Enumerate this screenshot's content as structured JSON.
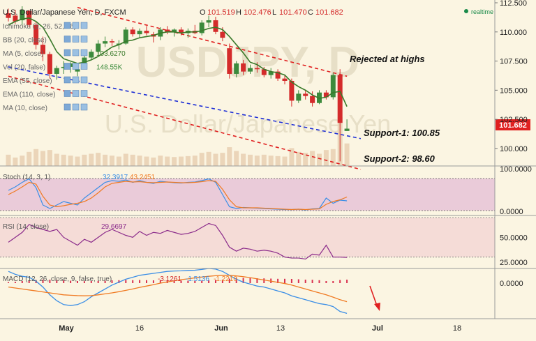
{
  "header": {
    "title": "U.S. Dollar/Japanese Yen, D, FXCM",
    "ohlc": [
      {
        "key": "O",
        "value": "101.519"
      },
      {
        "key": "H",
        "value": "102.476"
      },
      {
        "key": "L",
        "value": "101.470"
      },
      {
        "key": "C",
        "value": "101.682"
      }
    ],
    "realtime_label": "realtime"
  },
  "watermark": {
    "symbol": "USDJPY, D",
    "name": "U.S. Dollar/Japanese Yen"
  },
  "indicators": [
    {
      "label": "Ichimoku (9, 26, 52, 26)",
      "value": ""
    },
    {
      "label": "BB (20, close)",
      "value": ""
    },
    {
      "label": "MA (5, close)",
      "value": "103.6270"
    },
    {
      "label": "Vol (20, false)",
      "value": "148.55K"
    },
    {
      "label": "EMA (55, close)",
      "value": ""
    },
    {
      "label": "EMA (110, close)",
      "value": ""
    },
    {
      "label": "MA (10, close)",
      "value": ""
    }
  ],
  "annotations": {
    "rejected": "Rejected at highs",
    "support1": "Support-1: 100.85",
    "support2": "Support-2: 98.60"
  },
  "price_tag": "101.682",
  "colors": {
    "background": "#fbf5e2",
    "up_candle": "#3c8a3c",
    "down_candle": "#d42b2b",
    "ma_line": "#3a7a2a",
    "trendline_red": "#e02020",
    "trendline_blue": "#1e2fd6",
    "stoch_k": "#3a8ee6",
    "stoch_d": "#f07a22",
    "rsi": "#8a2a8a",
    "macd_line": "#3a8ee6",
    "signal_line": "#f07a22",
    "stoch_band": "#e8c6d8",
    "rsi_band": "#f4dad6"
  },
  "chart_data": [
    {
      "type": "candlestick",
      "title": "U.S. Dollar/Japanese Yen, D, FXCM",
      "ylim": [
        98.5,
        112.5
      ],
      "y_ticks": [
        "100.000",
        "102.500",
        "105.000",
        "107.500",
        "110.000",
        "112.500"
      ],
      "x_ticks": [
        "May",
        "16",
        "Jun",
        "13",
        "Jul",
        "18"
      ],
      "candles": [
        {
          "o": 111.6,
          "h": 112.0,
          "l": 110.9,
          "c": 111.2
        },
        {
          "o": 111.4,
          "h": 111.9,
          "l": 110.7,
          "c": 110.9
        },
        {
          "o": 111.0,
          "h": 112.2,
          "l": 110.6,
          "c": 111.9
        },
        {
          "o": 111.8,
          "h": 111.9,
          "l": 110.4,
          "c": 110.6
        },
        {
          "o": 110.6,
          "h": 110.9,
          "l": 108.5,
          "c": 108.9
        },
        {
          "o": 108.9,
          "h": 109.6,
          "l": 107.5,
          "c": 108.1
        },
        {
          "o": 108.1,
          "h": 108.3,
          "l": 106.0,
          "c": 106.4
        },
        {
          "o": 106.4,
          "h": 107.1,
          "l": 105.9,
          "c": 106.9
        },
        {
          "o": 106.9,
          "h": 107.5,
          "l": 106.4,
          "c": 107.0
        },
        {
          "o": 107.0,
          "h": 107.4,
          "l": 106.5,
          "c": 107.3
        },
        {
          "o": 106.6,
          "h": 107.2,
          "l": 106.2,
          "c": 106.8
        },
        {
          "o": 107.0,
          "h": 108.3,
          "l": 106.8,
          "c": 107.8
        },
        {
          "o": 107.8,
          "h": 108.5,
          "l": 107.6,
          "c": 108.3
        },
        {
          "o": 108.3,
          "h": 109.3,
          "l": 108.0,
          "c": 109.0
        },
        {
          "o": 109.0,
          "h": 109.6,
          "l": 108.7,
          "c": 109.2
        },
        {
          "o": 109.2,
          "h": 109.4,
          "l": 108.8,
          "c": 109.1
        },
        {
          "o": 108.9,
          "h": 109.3,
          "l": 108.5,
          "c": 109.0
        },
        {
          "o": 109.0,
          "h": 110.4,
          "l": 108.9,
          "c": 110.2
        },
        {
          "o": 110.2,
          "h": 110.4,
          "l": 109.6,
          "c": 109.8
        },
        {
          "o": 109.8,
          "h": 110.3,
          "l": 109.5,
          "c": 110.1
        },
        {
          "o": 110.1,
          "h": 110.5,
          "l": 109.7,
          "c": 109.9
        },
        {
          "o": 109.8,
          "h": 110.0,
          "l": 109.1,
          "c": 109.6
        },
        {
          "o": 109.6,
          "h": 110.4,
          "l": 109.3,
          "c": 110.2
        },
        {
          "o": 110.2,
          "h": 110.5,
          "l": 109.8,
          "c": 110.0
        },
        {
          "o": 110.0,
          "h": 110.3,
          "l": 109.6,
          "c": 110.2
        },
        {
          "o": 110.2,
          "h": 110.4,
          "l": 109.7,
          "c": 109.9
        },
        {
          "o": 109.9,
          "h": 110.3,
          "l": 109.5,
          "c": 110.1
        },
        {
          "o": 110.1,
          "h": 110.6,
          "l": 109.8,
          "c": 109.9
        },
        {
          "o": 109.9,
          "h": 111.0,
          "l": 109.7,
          "c": 110.8
        },
        {
          "o": 110.8,
          "h": 111.4,
          "l": 110.4,
          "c": 111.0
        },
        {
          "o": 111.0,
          "h": 111.3,
          "l": 109.8,
          "c": 110.0
        },
        {
          "o": 110.0,
          "h": 110.4,
          "l": 109.2,
          "c": 109.5
        },
        {
          "o": 108.6,
          "h": 109.0,
          "l": 106.0,
          "c": 106.4
        },
        {
          "o": 106.4,
          "h": 107.5,
          "l": 106.1,
          "c": 107.3
        },
        {
          "o": 107.3,
          "h": 107.6,
          "l": 106.3,
          "c": 106.6
        },
        {
          "o": 106.6,
          "h": 107.2,
          "l": 106.4,
          "c": 106.9
        },
        {
          "o": 106.9,
          "h": 107.4,
          "l": 106.5,
          "c": 106.8
        },
        {
          "o": 106.8,
          "h": 107.0,
          "l": 106.1,
          "c": 106.3
        },
        {
          "o": 106.3,
          "h": 106.9,
          "l": 106.0,
          "c": 106.6
        },
        {
          "o": 106.6,
          "h": 106.8,
          "l": 105.8,
          "c": 106.0
        },
        {
          "o": 106.0,
          "h": 106.3,
          "l": 105.5,
          "c": 105.8
        },
        {
          "o": 105.8,
          "h": 106.0,
          "l": 103.6,
          "c": 104.1
        },
        {
          "o": 104.1,
          "h": 105.0,
          "l": 103.9,
          "c": 104.7
        },
        {
          "o": 104.7,
          "h": 105.0,
          "l": 104.2,
          "c": 104.5
        },
        {
          "o": 104.5,
          "h": 104.9,
          "l": 103.6,
          "c": 103.9
        },
        {
          "o": 103.9,
          "h": 105.0,
          "l": 103.8,
          "c": 104.8
        },
        {
          "o": 104.8,
          "h": 105.0,
          "l": 104.2,
          "c": 104.4
        },
        {
          "o": 104.4,
          "h": 106.5,
          "l": 104.2,
          "c": 106.3
        },
        {
          "o": 106.3,
          "h": 106.8,
          "l": 98.9,
          "c": 102.2
        },
        {
          "o": 101.5,
          "h": 102.5,
          "l": 101.5,
          "c": 101.7
        }
      ],
      "ma5": [
        110.6,
        110.9,
        111.1,
        111.2,
        110.9,
        110.4,
        109.4,
        108.3,
        107.7,
        107.5,
        107.3,
        107.4,
        107.6,
        107.9,
        108.3,
        108.7,
        108.9,
        109.2,
        109.3,
        109.5,
        109.6,
        109.7,
        109.9,
        110.0,
        110.0,
        109.9,
        110.0,
        110.0,
        110.1,
        110.3,
        110.4,
        110.2,
        109.6,
        108.9,
        108.2,
        107.4,
        107.2,
        106.8,
        106.6,
        106.5,
        106.3,
        105.7,
        105.3,
        105.0,
        104.6,
        104.3,
        104.4,
        104.8,
        104.9,
        103.6
      ],
      "volume": [
        120,
        90,
        110,
        150,
        180,
        160,
        170,
        130,
        120,
        110,
        100,
        120,
        130,
        140,
        120,
        110,
        100,
        130,
        120,
        110,
        100,
        90,
        110,
        100,
        95,
        100,
        105,
        110,
        140,
        150,
        130,
        140,
        200,
        160,
        130,
        120,
        110,
        120,
        110,
        105,
        100,
        190,
        150,
        140,
        160,
        130,
        170,
        180,
        520,
        240
      ],
      "trendlines": [
        {
          "name": "upper",
          "from": [
            10,
            112.1
          ],
          "to": [
            49,
            106.2
          ]
        },
        {
          "name": "lower",
          "from": [
            0,
            106.2
          ],
          "to": [
            51,
            98.2
          ]
        },
        {
          "name": "support",
          "from": [
            0,
            107.0
          ],
          "to": [
            51,
            100.85
          ]
        }
      ],
      "support_levels": [
        100.85,
        98.6
      ],
      "last_price": 101.682
    },
    {
      "type": "line",
      "title": "Stoch (14, 3, 1)",
      "values_label": [
        "32.3917",
        "43.2451"
      ],
      "ylim": [
        0,
        100
      ],
      "y_ticks": [
        "100.0000",
        "0.0000"
      ],
      "band": [
        20,
        80
      ],
      "series": [
        {
          "name": "%K",
          "values": [
            62,
            72,
            85,
            95,
            70,
            20,
            10,
            20,
            30,
            25,
            20,
            40,
            55,
            70,
            85,
            90,
            88,
            92,
            85,
            90,
            85,
            82,
            88,
            86,
            84,
            83,
            85,
            86,
            90,
            95,
            85,
            50,
            15,
            10,
            13,
            12,
            11,
            10,
            9,
            8,
            7,
            7,
            8,
            6,
            9,
            10,
            40,
            25,
            34,
            32
          ]
        },
        {
          "name": "%D",
          "values": [
            50,
            60,
            72,
            85,
            80,
            45,
            20,
            15,
            18,
            22,
            25,
            30,
            40,
            55,
            72,
            82,
            85,
            88,
            86,
            87,
            85,
            84,
            85,
            86,
            85,
            84,
            84,
            85,
            87,
            90,
            88,
            65,
            35,
            15,
            12,
            12,
            12,
            11,
            10,
            9,
            8,
            7,
            8,
            7,
            8,
            9,
            22,
            30,
            35,
            43
          ]
        }
      ]
    },
    {
      "type": "line",
      "title": "RSI (14, close)",
      "values_label": [
        "29.6697"
      ],
      "ylim": [
        22,
        70
      ],
      "y_ticks": [
        "50.0000",
        "25.0000"
      ],
      "band": [
        30,
        70
      ],
      "series": [
        {
          "name": "RSI",
          "values": [
            45,
            50,
            55,
            63,
            60,
            58,
            56,
            58,
            50,
            46,
            42,
            48,
            45,
            50,
            55,
            58,
            55,
            52,
            50,
            56,
            52,
            55,
            54,
            57,
            55,
            53,
            54,
            56,
            60,
            64,
            62,
            52,
            40,
            36,
            39,
            38,
            36,
            37,
            36,
            34,
            30,
            29,
            29,
            28,
            33,
            32,
            42,
            30,
            30,
            29.7
          ]
        }
      ]
    },
    {
      "type": "bar",
      "title": "MACD (12, 26, close, 9, false, true)",
      "values_label": [
        "-3.1261",
        "-1.5136",
        "-1.2210"
      ],
      "y_ticks": [
        "0.0000"
      ],
      "series": [
        {
          "name": "histogram",
          "values": [
            0.15,
            0.2,
            0.3,
            0.4,
            0.45,
            0.5,
            0.5,
            0.45,
            0.4,
            0.35,
            0.3,
            0.28,
            0.3,
            0.32,
            0.35,
            0.4,
            0.42,
            0.45,
            0.42,
            0.45,
            0.42,
            0.4,
            0.4,
            0.4,
            0.38,
            0.36,
            0.35,
            0.32,
            0.35,
            0.4,
            0.45,
            0.5,
            0.65,
            0.75,
            0.75,
            0.72,
            0.7,
            0.68,
            0.65,
            0.62,
            0.62,
            0.6,
            0.55,
            0.5,
            0.48,
            0.42,
            0.3,
            0.3,
            0.45,
            0.5
          ]
        },
        {
          "name": "MACD",
          "values": [
            0.6,
            0.45,
            0.35,
            0.3,
            0.1,
            -0.2,
            -0.6,
            -0.9,
            -1.1,
            -1.15,
            -1.1,
            -0.95,
            -0.7,
            -0.5,
            -0.3,
            -0.1,
            0.05,
            0.2,
            0.3,
            0.4,
            0.45,
            0.5,
            0.55,
            0.6,
            0.62,
            0.63,
            0.65,
            0.66,
            0.7,
            0.75,
            0.72,
            0.6,
            0.4,
            0.2,
            0.05,
            -0.05,
            -0.15,
            -0.2,
            -0.3,
            -0.4,
            -0.5,
            -0.65,
            -0.75,
            -0.85,
            -0.95,
            -1.05,
            -1.1,
            -1.2,
            -1.45,
            -1.55
          ]
        },
        {
          "name": "Signal",
          "values": [
            -0.2,
            -0.25,
            -0.3,
            -0.35,
            -0.4,
            -0.45,
            -0.5,
            -0.55,
            -0.6,
            -0.62,
            -0.64,
            -0.65,
            -0.64,
            -0.6,
            -0.55,
            -0.5,
            -0.44,
            -0.37,
            -0.3,
            -0.22,
            -0.15,
            -0.08,
            0.0,
            0.06,
            0.12,
            0.18,
            0.22,
            0.27,
            0.31,
            0.35,
            0.38,
            0.4,
            0.4,
            0.37,
            0.33,
            0.28,
            0.22,
            0.16,
            0.1,
            0.04,
            -0.02,
            -0.1,
            -0.2,
            -0.3,
            -0.4,
            -0.5,
            -0.6,
            -0.72,
            -0.85,
            -0.95
          ]
        }
      ]
    }
  ]
}
